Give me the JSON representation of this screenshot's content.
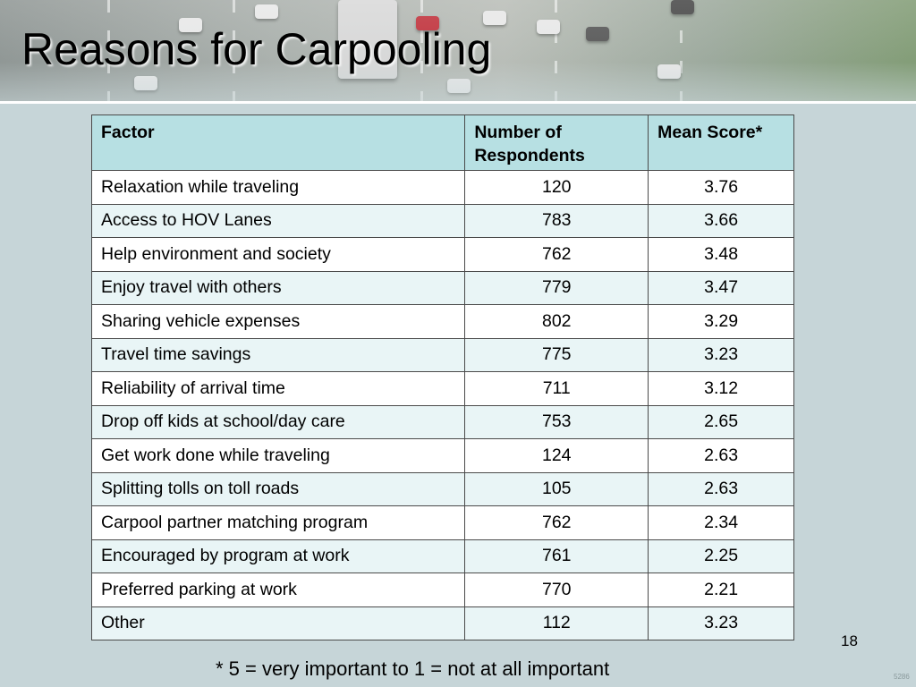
{
  "slide": {
    "title": "Reasons for Carpooling",
    "page_number": "18",
    "footnote": "* 5 = very important to 1 = not at all important",
    "code": "5286"
  },
  "table": {
    "headers": [
      "Factor",
      "Number of Respondents",
      "Mean Score*"
    ],
    "rows": [
      {
        "factor": "Relaxation while traveling",
        "respondents": "120",
        "mean": "3.76"
      },
      {
        "factor": "Access to HOV Lanes",
        "respondents": "783",
        "mean": "3.66"
      },
      {
        "factor": "Help environment and society",
        "respondents": "762",
        "mean": "3.48"
      },
      {
        "factor": "Enjoy travel with others",
        "respondents": "779",
        "mean": "3.47"
      },
      {
        "factor": "Sharing vehicle expenses",
        "respondents": "802",
        "mean": "3.29"
      },
      {
        "factor": "Travel time savings",
        "respondents": "775",
        "mean": "3.23"
      },
      {
        "factor": "Reliability of arrival time",
        "respondents": "711",
        "mean": "3.12"
      },
      {
        "factor": "Drop off kids at school/day care",
        "respondents": "753",
        "mean": "2.65"
      },
      {
        "factor": "Get work done while traveling",
        "respondents": "124",
        "mean": "2.63"
      },
      {
        "factor": "Splitting tolls on toll roads",
        "respondents": "105",
        "mean": "2.63"
      },
      {
        "factor": "Carpool partner matching program",
        "respondents": "762",
        "mean": "2.34"
      },
      {
        "factor": "Encouraged by program at work",
        "respondents": "761",
        "mean": "2.25"
      },
      {
        "factor": "Preferred parking at work",
        "respondents": "770",
        "mean": "2.21"
      },
      {
        "factor": "Other",
        "respondents": "112",
        "mean": "3.23"
      }
    ]
  },
  "colors": {
    "header_fill": "#b7e0e3",
    "alt_row_fill": "#e9f5f6",
    "background": "#c6d5d8"
  }
}
